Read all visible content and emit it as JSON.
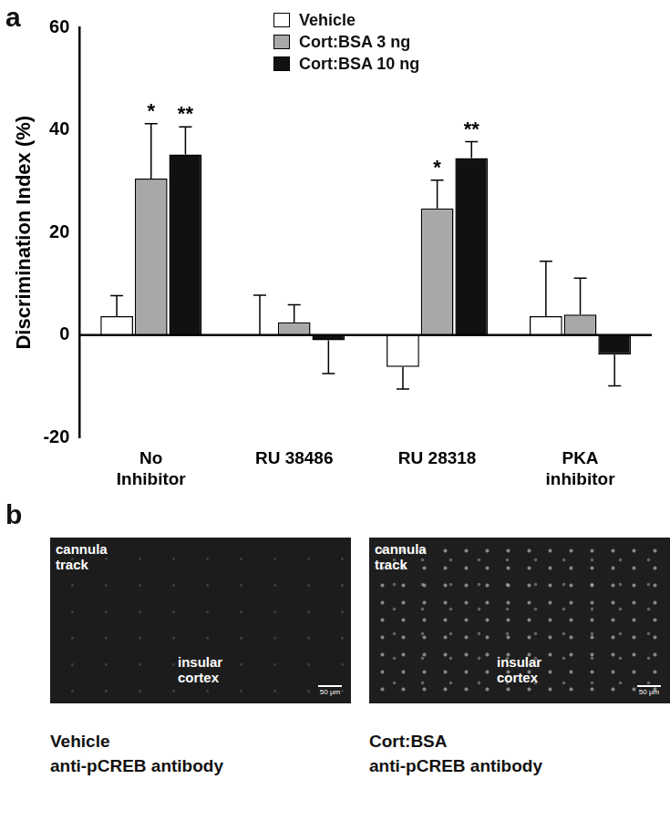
{
  "chart_data": {
    "type": "bar",
    "panel_label": "a",
    "y_label": "Discrimination Index (%)",
    "categories": [
      "No Inhibitor",
      "RU 38486",
      "RU 28318",
      "PKA inhibitor"
    ],
    "series": [
      {
        "name": "Vehicle",
        "color": "#ffffff",
        "values": [
          3.7,
          0,
          -6.2,
          3.7
        ],
        "errors": [
          4.0,
          7.8,
          4.3,
          10.7
        ],
        "significance": [
          null,
          null,
          null,
          null
        ]
      },
      {
        "name": "Cort:BSA 3 ng",
        "color": "#a8a8a8",
        "values": [
          30.5,
          2.5,
          24.7,
          4.0
        ],
        "errors": [
          10.7,
          3.4,
          5.5,
          7.1
        ],
        "significance": [
          "*",
          null,
          "*",
          null
        ]
      },
      {
        "name": "Cort:BSA 10 ng",
        "color": "#111111",
        "values": [
          35.2,
          -1.0,
          34.5,
          -3.8
        ],
        "errors": [
          5.4,
          6.5,
          3.2,
          6.1
        ],
        "significance": [
          "**",
          null,
          "**",
          null
        ]
      }
    ],
    "ylim": [
      -20,
      60
    ],
    "yticks": [
      -20,
      0,
      20,
      40,
      60
    ],
    "grid": false,
    "legend": "top"
  },
  "panel_b": {
    "panel_label": "b",
    "images": [
      {
        "overlay_top": "cannula track",
        "overlay_middle": "insular cortex",
        "scale_bar": "50 μm",
        "caption": [
          "Vehicle",
          "anti-pCREB antibody"
        ]
      },
      {
        "overlay_top": "cannula track",
        "overlay_middle": "insular cortex",
        "scale_bar": "50 μm",
        "caption": [
          "Cort:BSA",
          "anti-pCREB antibody"
        ]
      }
    ]
  }
}
